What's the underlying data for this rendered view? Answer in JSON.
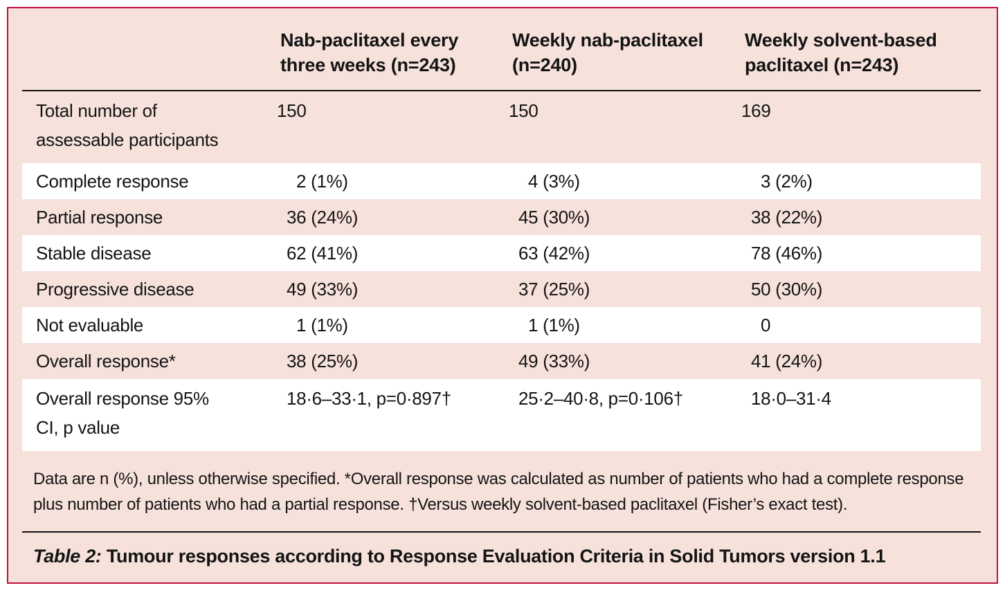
{
  "colors": {
    "pink": "#f6e1db",
    "crimson": "#bf0f3e",
    "stripe_white": "#ffffff",
    "rule": "#111111",
    "text": "#141414"
  },
  "table": {
    "columns": [
      "Nab-paclitaxel every three weeks (n=243)",
      "Weekly nab-paclitaxel (n=240)",
      "Weekly solvent-based paclitaxel (n=243)"
    ],
    "rows": [
      {
        "label": "Total number of assessable participants",
        "values": [
          "150",
          "150",
          "169"
        ],
        "shade": "pink",
        "tall": true
      },
      {
        "label": "Complete response",
        "values": [
          "2 (1%)",
          "4 (3%)",
          "3 (2%)"
        ],
        "shade": "white",
        "tall": false
      },
      {
        "label": "Partial response",
        "values": [
          "36 (24%)",
          "45 (30%)",
          "38 (22%)"
        ],
        "shade": "pink",
        "tall": false
      },
      {
        "label": "Stable disease",
        "values": [
          "62 (41%)",
          "63 (42%)",
          "78 (46%)"
        ],
        "shade": "white",
        "tall": false
      },
      {
        "label": "Progressive disease",
        "values": [
          "49 (33%)",
          "37 (25%)",
          "50 (30%)"
        ],
        "shade": "pink",
        "tall": false
      },
      {
        "label": "Not evaluable",
        "values": [
          "1 (1%)",
          "1 (1%)",
          "0"
        ],
        "shade": "white",
        "tall": false
      },
      {
        "label": "Overall response*",
        "values": [
          "38 (25%)",
          "49 (33%)",
          "41 (24%)"
        ],
        "shade": "pink",
        "tall": false
      },
      {
        "label": "Overall response 95% CI, p value",
        "values": [
          "18·6–33·1, p=0·897†",
          "25·2–40·8, p=0·106†",
          "18·0–31·4"
        ],
        "shade": "white",
        "tall": true
      }
    ],
    "footnote": "Data are n (%), unless otherwise specified. *Overall response was calculated as number of patients who had a complete response plus number of patients who had a partial response. †Versus weekly solvent-based paclitaxel (Fisher’s exact test).",
    "caption": {
      "prefix": "Table 2:",
      "text": "Tumour responses according to Response Evaluation Criteria in Solid Tumors version 1.1"
    }
  }
}
